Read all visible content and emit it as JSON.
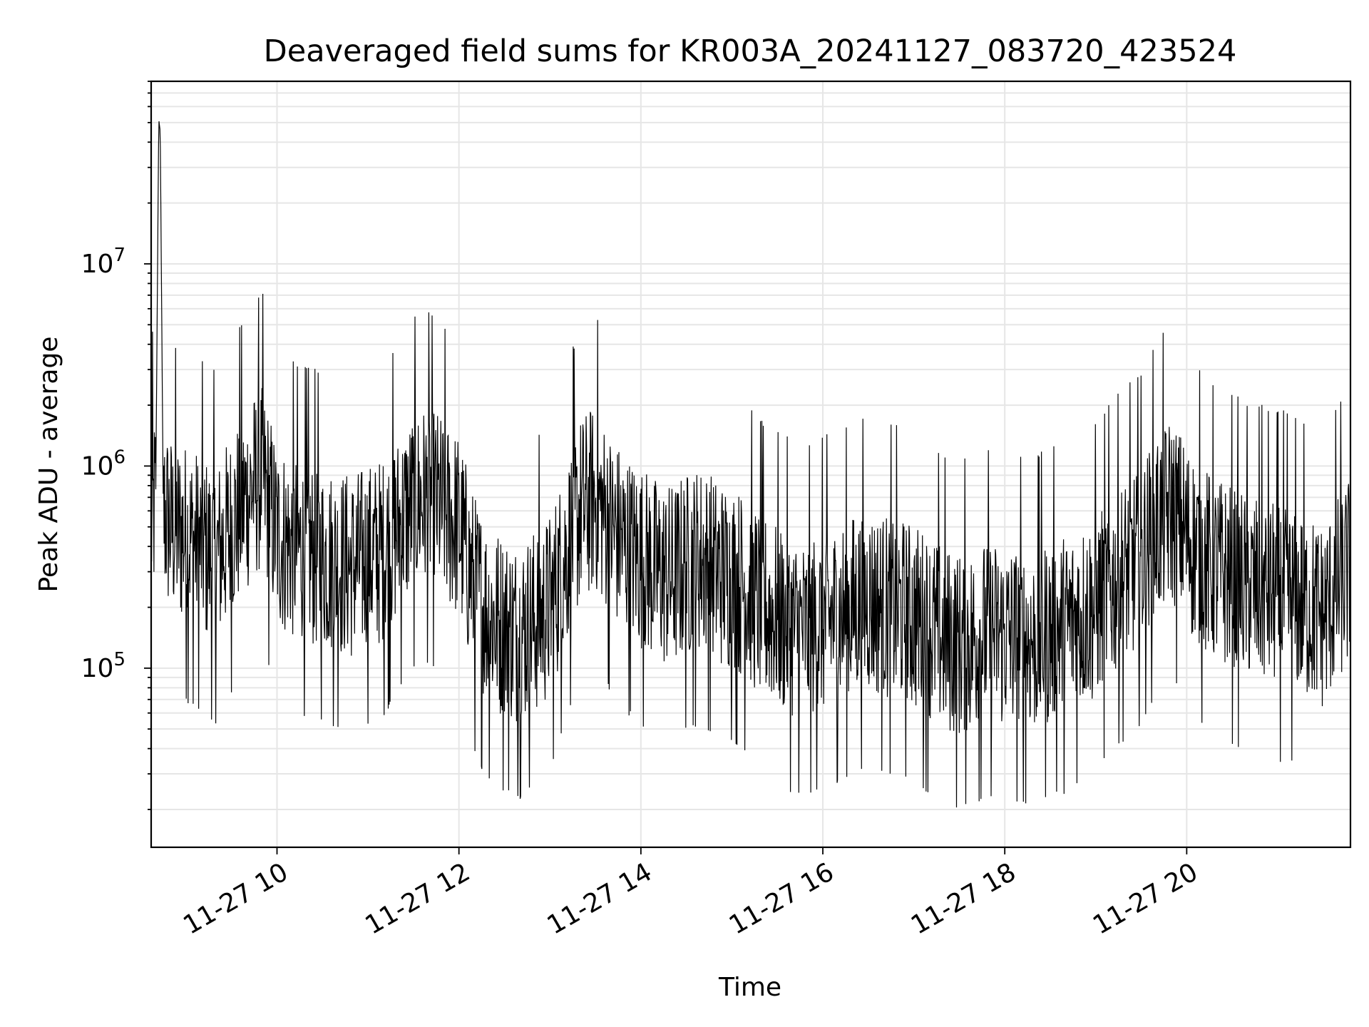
{
  "chart_data": {
    "type": "line",
    "title": "Deaveraged field sums for KR003A_20241127_083720_423524",
    "xlabel": "Time",
    "ylabel": "Peak ADU - average",
    "yscale": "log",
    "ylim": [
      13000,
      80000000
    ],
    "xlim": [
      "2024-11-27 08:37",
      "2024-11-27 21:48"
    ],
    "grid": true,
    "line_color": "#000000",
    "x_ticks": [
      "11-27 10",
      "11-27 12",
      "11-27 14",
      "11-27 16",
      "11-27 18",
      "11-27 20"
    ],
    "y_ticks": [
      {
        "value": 100000,
        "base": "10",
        "exp": "5"
      },
      {
        "value": 1000000,
        "base": "10",
        "exp": "6"
      },
      {
        "value": 10000000,
        "base": "10",
        "exp": "7"
      }
    ],
    "series": [
      {
        "x": [
          "2024-11-27 08:37",
          "2024-11-27 08:40",
          "2024-11-27 08:42",
          "2024-11-27 08:43",
          "2024-11-27 08:45",
          "2024-11-27 08:50",
          "2024-11-27 09:00",
          "2024-11-27 09:10",
          "2024-11-27 09:20",
          "2024-11-27 09:30",
          "2024-11-27 09:40",
          "2024-11-27 09:50",
          "2024-11-27 10:00",
          "2024-11-27 10:10",
          "2024-11-27 10:20",
          "2024-11-27 10:30",
          "2024-11-27 10:40",
          "2024-11-27 10:50",
          "2024-11-27 11:00",
          "2024-11-27 11:10",
          "2024-11-27 11:20",
          "2024-11-27 11:30",
          "2024-11-27 11:40",
          "2024-11-27 11:50",
          "2024-11-27 12:00",
          "2024-11-27 12:10",
          "2024-11-27 12:20",
          "2024-11-27 12:30",
          "2024-11-27 12:40",
          "2024-11-27 12:50",
          "2024-11-27 13:00",
          "2024-11-27 13:10",
          "2024-11-27 13:20",
          "2024-11-27 13:30",
          "2024-11-27 13:40",
          "2024-11-27 13:50",
          "2024-11-27 14:00",
          "2024-11-27 14:10",
          "2024-11-27 14:20",
          "2024-11-27 14:30",
          "2024-11-27 14:40",
          "2024-11-27 14:50",
          "2024-11-27 15:00",
          "2024-11-27 15:10",
          "2024-11-27 15:20",
          "2024-11-27 15:30",
          "2024-11-27 15:40",
          "2024-11-27 15:50",
          "2024-11-27 16:00",
          "2024-11-27 16:10",
          "2024-11-27 16:20",
          "2024-11-27 16:30",
          "2024-11-27 16:40",
          "2024-11-27 16:50",
          "2024-11-27 17:00",
          "2024-11-27 17:10",
          "2024-11-27 17:20",
          "2024-11-27 17:30",
          "2024-11-27 17:40",
          "2024-11-27 17:50",
          "2024-11-27 18:00",
          "2024-11-27 18:10",
          "2024-11-27 18:20",
          "2024-11-27 18:30",
          "2024-11-27 18:40",
          "2024-11-27 18:50",
          "2024-11-27 19:00",
          "2024-11-27 19:10",
          "2024-11-27 19:20",
          "2024-11-27 19:30",
          "2024-11-27 19:40",
          "2024-11-27 19:50",
          "2024-11-27 20:00",
          "2024-11-27 20:10",
          "2024-11-27 20:20",
          "2024-11-27 20:30",
          "2024-11-27 20:40",
          "2024-11-27 20:50",
          "2024-11-27 21:00",
          "2024-11-27 21:10",
          "2024-11-27 21:20",
          "2024-11-27 21:30",
          "2024-11-27 21:40",
          "2024-11-27 21:48"
        ],
        "y": [
          500000,
          700000,
          52000000,
          45000000,
          600000,
          500000,
          450000,
          400000,
          350000,
          500000,
          700000,
          900000,
          450000,
          400000,
          380000,
          350000,
          330000,
          320000,
          350000,
          380000,
          500000,
          650000,
          700000,
          600000,
          500000,
          250000,
          180000,
          160000,
          150000,
          170000,
          200000,
          350000,
          600000,
          700000,
          500000,
          400000,
          350000,
          300000,
          280000,
          320000,
          350000,
          300000,
          280000,
          250000,
          200000,
          180000,
          160000,
          150000,
          170000,
          180000,
          200000,
          220000,
          200000,
          190000,
          180000,
          160000,
          140000,
          130000,
          140000,
          150000,
          145000,
          140000,
          135000,
          150000,
          160000,
          180000,
          200000,
          250000,
          300000,
          350000,
          500000,
          600000,
          450000,
          350000,
          300000,
          280000,
          250000,
          240000,
          230000,
          220000,
          200000,
          180000,
          250000,
          300000
        ]
      }
    ]
  }
}
